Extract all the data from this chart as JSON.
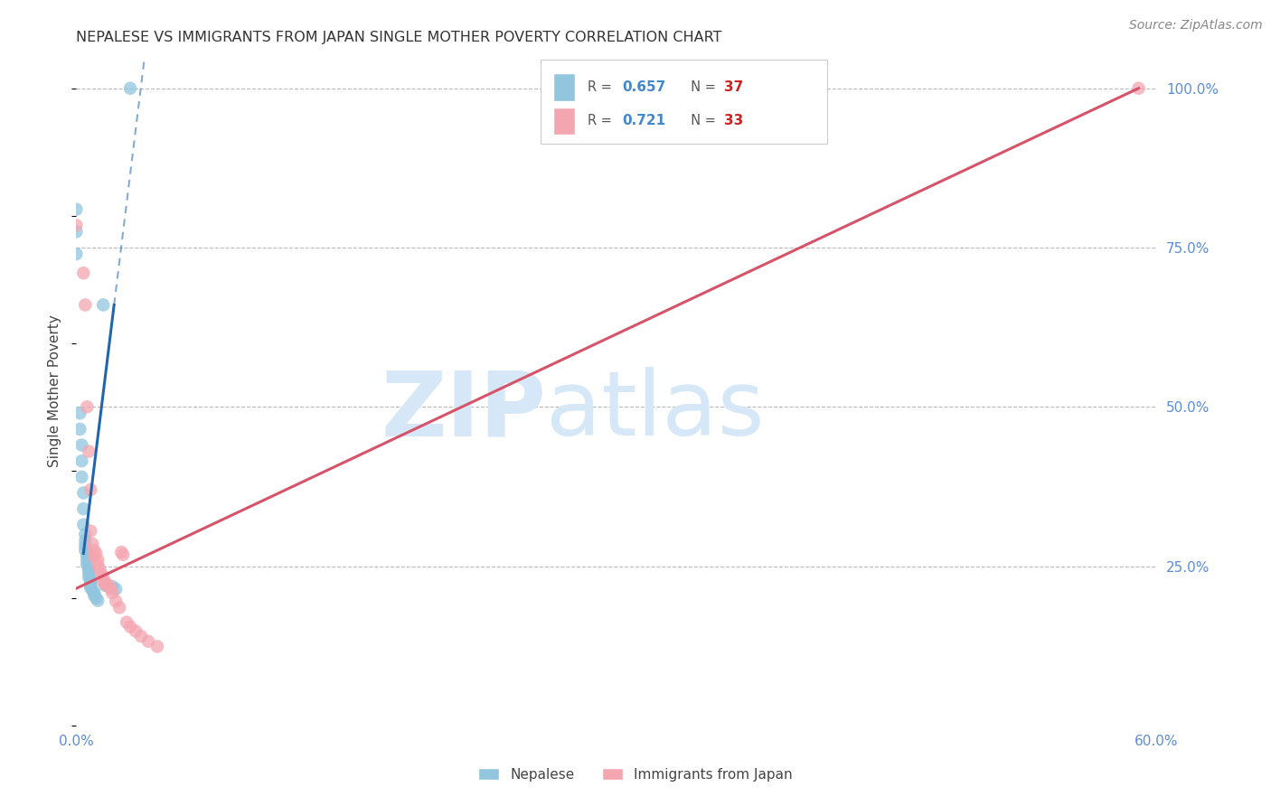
{
  "title": "NEPALESE VS IMMIGRANTS FROM JAPAN SINGLE MOTHER POVERTY CORRELATION CHART",
  "source": "Source: ZipAtlas.com",
  "ylabel": "Single Mother Poverty",
  "xlim": [
    0.0,
    0.6
  ],
  "ylim": [
    0.0,
    1.05
  ],
  "nepalese_R": 0.657,
  "nepalese_N": 37,
  "japan_R": 0.721,
  "japan_N": 33,
  "nepalese_color": "#92c5de",
  "japan_color": "#f4a6b0",
  "nepalese_line_color": "#2166ac",
  "japan_line_color": "#d6546a",
  "background_color": "#ffffff",
  "grid_color": "#bbbbbb",
  "tick_color": "#5b8dd9",
  "title_color": "#333333",
  "title_fontsize": 11.5,
  "watermark_color": "#d6e8f7",
  "legend_R_color": "#4488cc",
  "legend_N_color": "#cc2222",
  "nepalese_x": [
    0.0,
    0.0,
    0.0,
    0.002,
    0.002,
    0.003,
    0.003,
    0.003,
    0.004,
    0.004,
    0.004,
    0.005,
    0.005,
    0.005,
    0.005,
    0.006,
    0.006,
    0.006,
    0.006,
    0.007,
    0.007,
    0.007,
    0.007,
    0.008,
    0.008,
    0.008,
    0.008,
    0.009,
    0.01,
    0.01,
    0.011,
    0.012,
    0.015,
    0.016,
    0.02,
    0.022,
    0.03
  ],
  "nepalese_y": [
    0.81,
    0.775,
    0.74,
    0.49,
    0.465,
    0.44,
    0.415,
    0.39,
    0.365,
    0.34,
    0.315,
    0.3,
    0.29,
    0.282,
    0.275,
    0.27,
    0.264,
    0.258,
    0.252,
    0.247,
    0.242,
    0.237,
    0.232,
    0.228,
    0.224,
    0.22,
    0.216,
    0.212,
    0.208,
    0.204,
    0.2,
    0.196,
    0.66,
    0.22,
    0.218,
    0.214,
    1.0
  ],
  "japan_x": [
    0.0,
    0.004,
    0.005,
    0.006,
    0.007,
    0.008,
    0.008,
    0.009,
    0.01,
    0.01,
    0.011,
    0.012,
    0.012,
    0.013,
    0.014,
    0.015,
    0.015,
    0.016,
    0.017,
    0.018,
    0.019,
    0.02,
    0.022,
    0.024,
    0.025,
    0.026,
    0.028,
    0.03,
    0.033,
    0.036,
    0.04,
    0.045,
    0.59
  ],
  "japan_y": [
    0.785,
    0.71,
    0.66,
    0.5,
    0.43,
    0.37,
    0.305,
    0.285,
    0.275,
    0.265,
    0.27,
    0.26,
    0.252,
    0.245,
    0.238,
    0.232,
    0.225,
    0.222,
    0.222,
    0.218,
    0.215,
    0.208,
    0.195,
    0.185,
    0.272,
    0.268,
    0.162,
    0.155,
    0.148,
    0.14,
    0.132,
    0.124,
    1.0
  ],
  "nep_line_x0": 0.004,
  "nep_line_x1": 0.021,
  "nep_line_dash_x1": 0.038,
  "jap_line_x0": 0.0,
  "jap_line_x1": 0.59
}
